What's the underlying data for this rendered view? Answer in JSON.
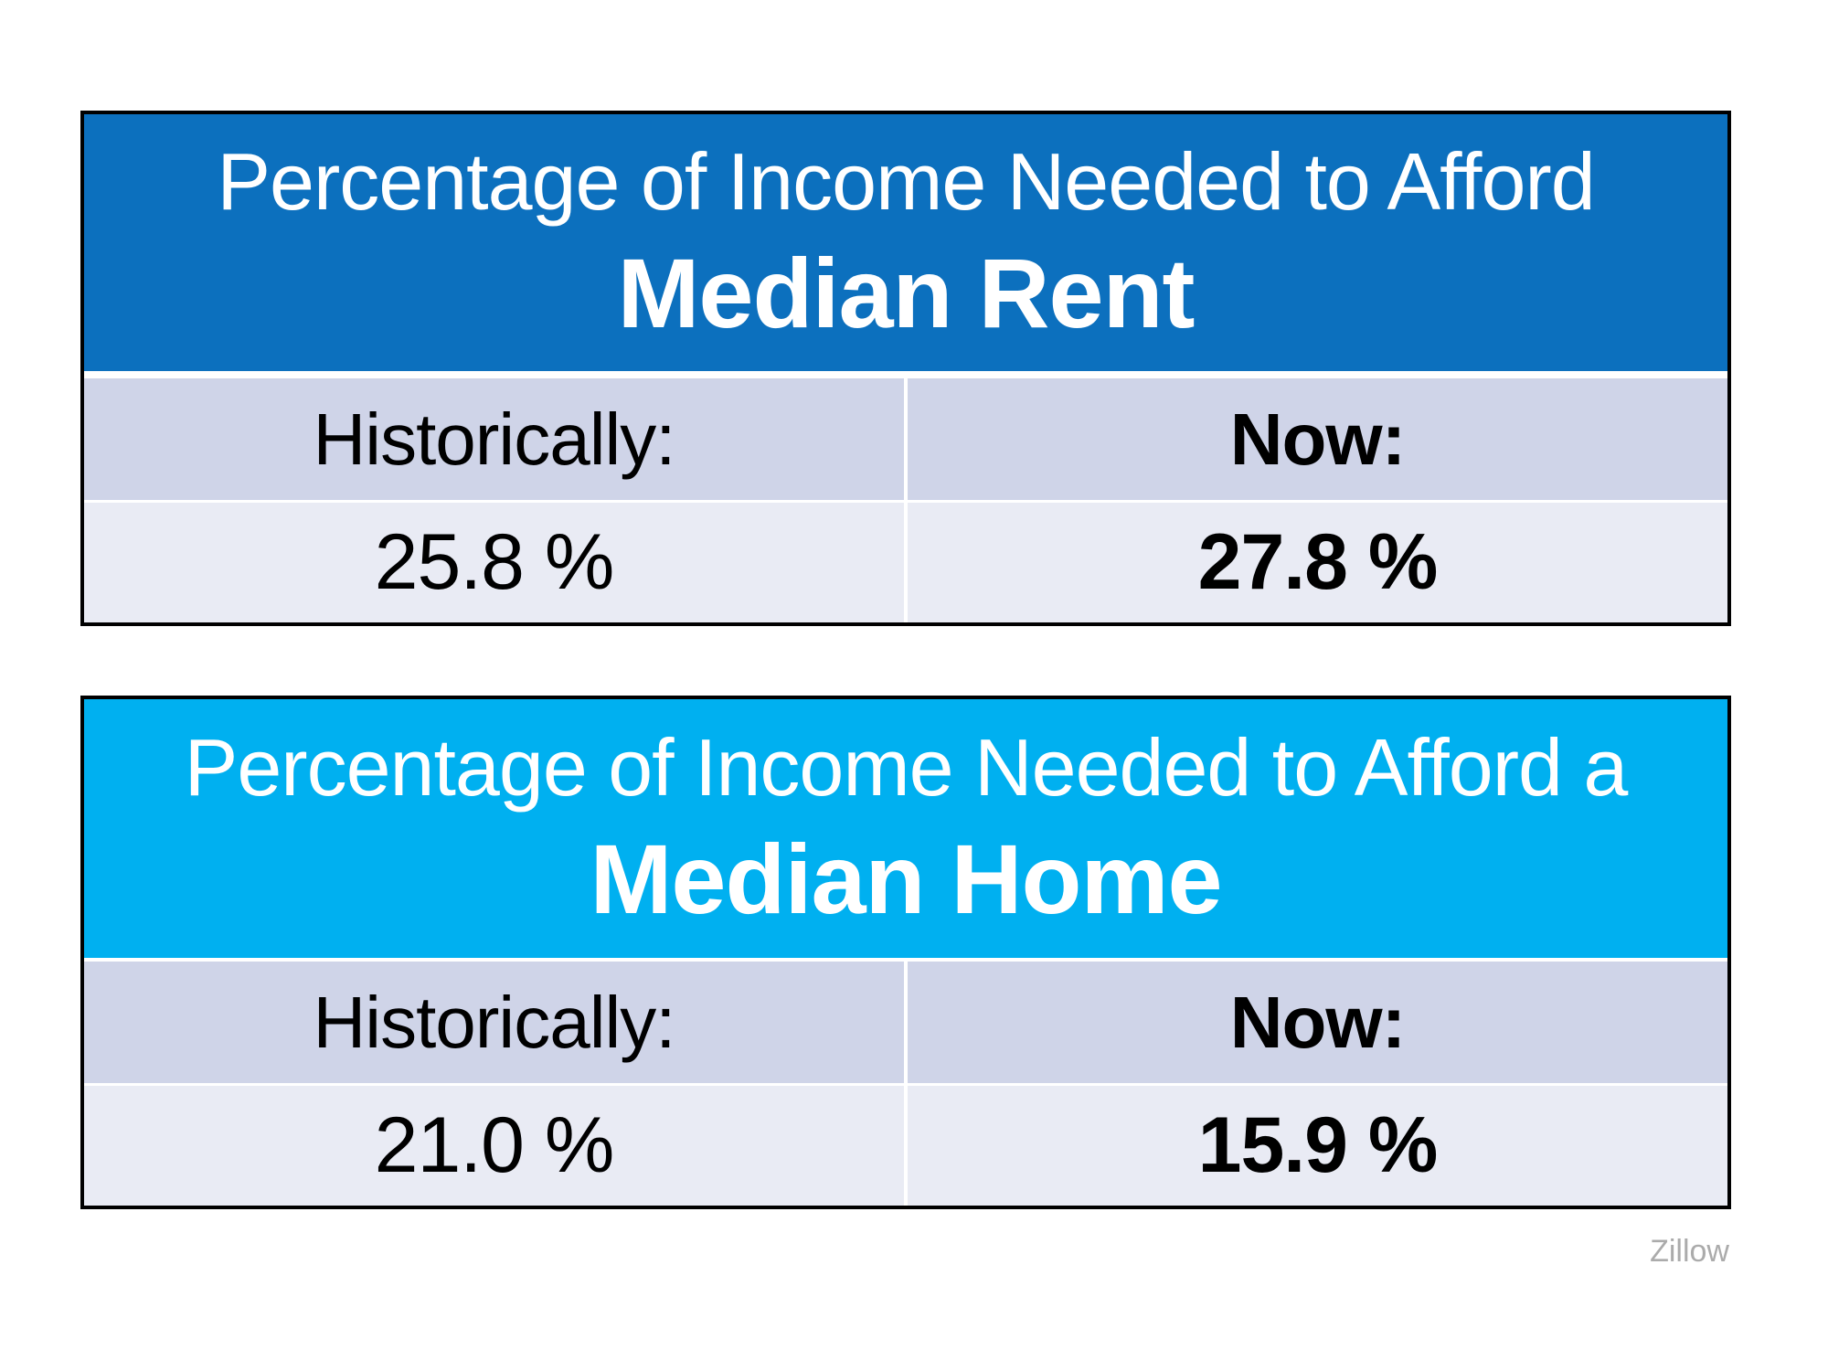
{
  "colors": {
    "page_bg": "#ffffff",
    "rent_header_bg": "#0c70be",
    "home_header_bg": "#00b0f0",
    "label_row_bg": "#cfd4e8",
    "value_row_bg": "#e9ebf4",
    "header_text_color": "#ffffff",
    "body_text_color": "#000000",
    "border_color": "#000000",
    "attribution_color": "#ababab"
  },
  "attribution": "Zillow",
  "tables": [
    {
      "header_line1": "Percentage of Income Needed to Afford",
      "header_line2": "Median Rent",
      "col1_label": "Historically:",
      "col2_label": "Now:",
      "col1_value": "25.8 %",
      "col2_value": "27.8 %"
    },
    {
      "header_line1": "Percentage of Income Needed to Afford a",
      "header_line2": "Median Home",
      "col1_label": "Historically:",
      "col2_label": "Now:",
      "col1_value": "21.0 %",
      "col2_value": "15.9 %"
    }
  ],
  "chart_data": [
    {
      "type": "table",
      "title": "Percentage of Income Needed to Afford Median Rent",
      "columns": [
        "Historically:",
        "Now:"
      ],
      "rows": [
        [
          "25.8 %",
          "27.8 %"
        ]
      ],
      "values_numeric": {
        "historically": 25.8,
        "now": 27.8,
        "unit": "%"
      },
      "source": "Zillow"
    },
    {
      "type": "table",
      "title": "Percentage of Income Needed to Afford a Median Home",
      "columns": [
        "Historically:",
        "Now:"
      ],
      "rows": [
        [
          "21.0 %",
          "15.9 %"
        ]
      ],
      "values_numeric": {
        "historically": 21.0,
        "now": 15.9,
        "unit": "%"
      },
      "source": "Zillow"
    }
  ]
}
